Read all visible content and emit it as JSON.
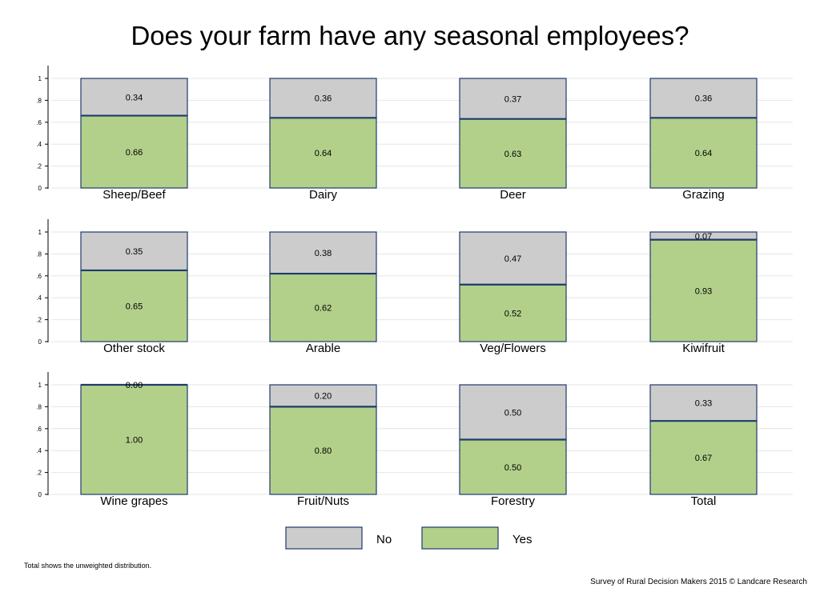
{
  "title": "Does your farm have any seasonal employees?",
  "footnote": "Total shows the unweighted distribution.",
  "source": "Survey of Rural Decision Makers 2015 © Landcare Research",
  "colors": {
    "No": "#cccccc",
    "Yes": "#b2d08a",
    "outline": "#1f3a6b",
    "grid": "#e6e6e6",
    "axis": "#000000"
  },
  "chart_data": {
    "type": "bar",
    "stacked": true,
    "y_ticks": [
      "0",
      ".2",
      ".4",
      ".6",
      ".8",
      "1"
    ],
    "ylim": [
      0,
      1
    ],
    "grid": true,
    "legend": {
      "placement": "bottom",
      "entries": [
        "No",
        "Yes"
      ]
    },
    "panels": [
      {
        "category": "Sheep/Beef",
        "Yes": 0.66,
        "No": 0.34,
        "yes_label": "0.66",
        "no_label": "0.34"
      },
      {
        "category": "Dairy",
        "Yes": 0.64,
        "No": 0.36,
        "yes_label": "0.64",
        "no_label": "0.36"
      },
      {
        "category": "Deer",
        "Yes": 0.63,
        "No": 0.37,
        "yes_label": "0.63",
        "no_label": "0.37"
      },
      {
        "category": "Grazing",
        "Yes": 0.64,
        "No": 0.36,
        "yes_label": "0.64",
        "no_label": "0.36"
      },
      {
        "category": "Other stock",
        "Yes": 0.65,
        "No": 0.35,
        "yes_label": "0.65",
        "no_label": "0.35"
      },
      {
        "category": "Arable",
        "Yes": 0.62,
        "No": 0.38,
        "yes_label": "0.62",
        "no_label": "0.38"
      },
      {
        "category": "Veg/Flowers",
        "Yes": 0.52,
        "No": 0.47,
        "yes_label": "0.52",
        "no_label": "0.47"
      },
      {
        "category": "Kiwifruit",
        "Yes": 0.93,
        "No": 0.07,
        "yes_label": "0.93",
        "no_label": "0.07"
      },
      {
        "category": "Wine grapes",
        "Yes": 1.0,
        "No": 0.0,
        "yes_label": "1.00",
        "no_label": "0.00"
      },
      {
        "category": "Fruit/Nuts",
        "Yes": 0.8,
        "No": 0.2,
        "yes_label": "0.80",
        "no_label": "0.20"
      },
      {
        "category": "Forestry",
        "Yes": 0.5,
        "No": 0.5,
        "yes_label": "0.50",
        "no_label": "0.50"
      },
      {
        "category": "Total",
        "Yes": 0.67,
        "No": 0.33,
        "yes_label": "0.67",
        "no_label": "0.33"
      }
    ]
  }
}
